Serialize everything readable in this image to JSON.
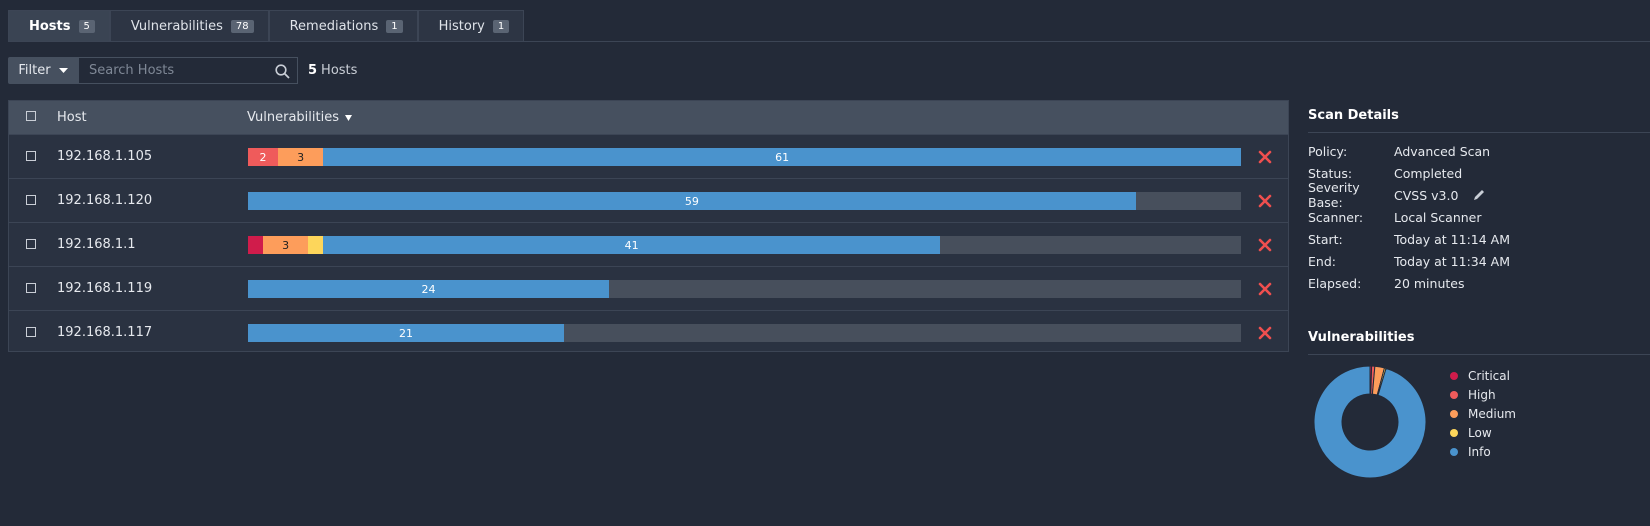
{
  "tabs": [
    {
      "label": "Hosts",
      "count": 5,
      "active": true
    },
    {
      "label": "Vulnerabilities",
      "count": 78,
      "active": false
    },
    {
      "label": "Remediations",
      "count": 1,
      "active": false
    },
    {
      "label": "History",
      "count": 1,
      "active": false
    }
  ],
  "filter": {
    "button": "Filter",
    "placeholder": "Search Hosts"
  },
  "summary": {
    "count": 5,
    "label": "Hosts"
  },
  "table": {
    "columns": [
      "Host",
      "Vulnerabilities"
    ],
    "rows": [
      {
        "host": "192.168.1.105",
        "counts": [
          0,
          2,
          3,
          0,
          61
        ]
      },
      {
        "host": "192.168.1.120",
        "counts": [
          0,
          0,
          0,
          0,
          59
        ]
      },
      {
        "host": "192.168.1.1",
        "counts": [
          1,
          0,
          3,
          1,
          41
        ]
      },
      {
        "host": "192.168.1.119",
        "counts": [
          0,
          0,
          0,
          0,
          24
        ]
      },
      {
        "host": "192.168.1.117",
        "counts": [
          0,
          0,
          0,
          0,
          21
        ]
      }
    ]
  },
  "scan_details": {
    "title": "Scan Details",
    "items": [
      {
        "label": "Policy:",
        "value": "Advanced Scan"
      },
      {
        "label": "Status:",
        "value": "Completed"
      },
      {
        "label": "Severity Base:",
        "value": "CVSS v3.0"
      },
      {
        "label": "Scanner:",
        "value": "Local Scanner"
      },
      {
        "label": "Start:",
        "value": "Today at 11:14 AM"
      },
      {
        "label": "End:",
        "value": "Today at 11:34 AM"
      },
      {
        "label": "Elapsed:",
        "value": "20 minutes"
      }
    ]
  },
  "chart_data": {
    "type": "pie",
    "donut": true,
    "title": "Vulnerabilities",
    "labels": [
      "Critical",
      "High",
      "Medium",
      "Low",
      "Info"
    ],
    "values": [
      1,
      2,
      6,
      1,
      206
    ],
    "colors": [
      "#d01c4b",
      "#ef5b5b",
      "#fd9d5b",
      "#fdd65b",
      "#4a93cd"
    ]
  }
}
